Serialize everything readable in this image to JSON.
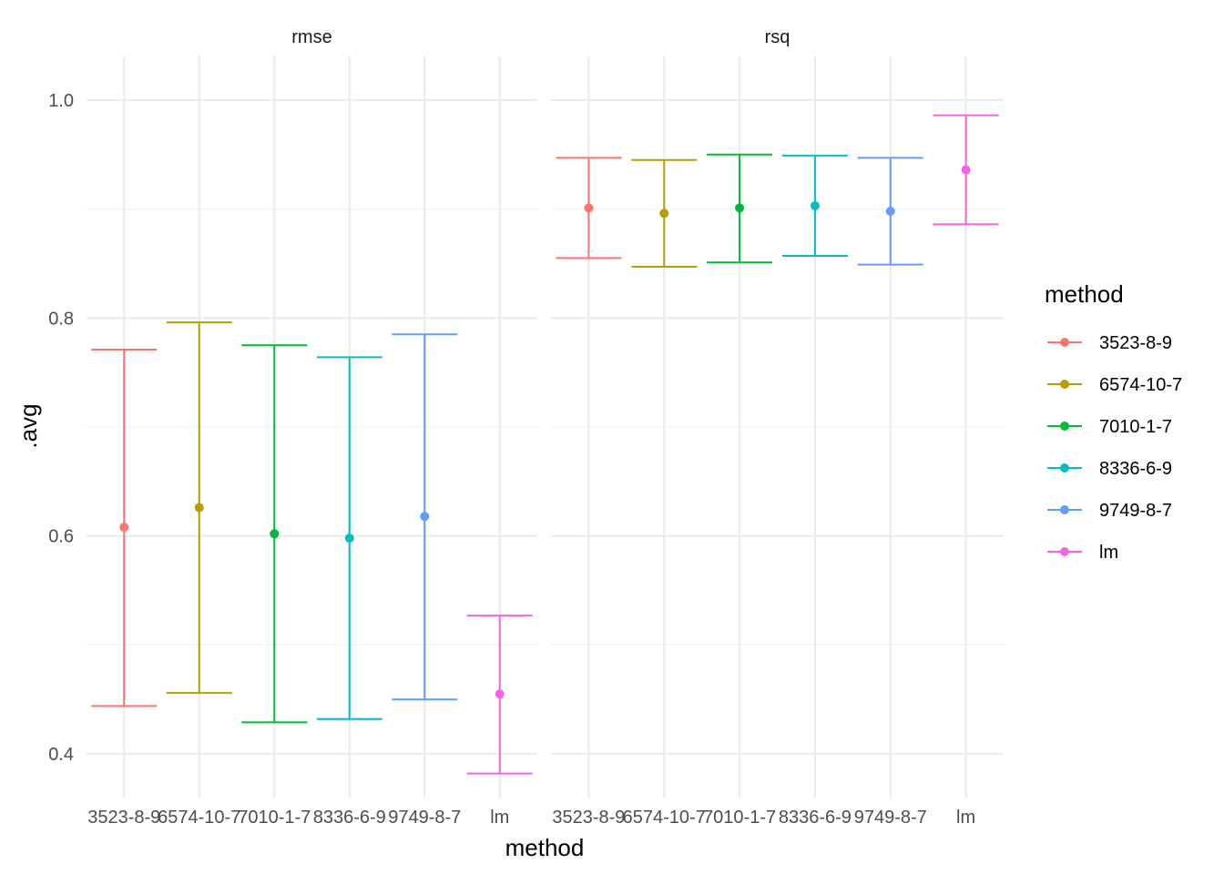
{
  "chart_data": {
    "type": "errorbar",
    "xlabel": "method",
    "ylabel": ".avg",
    "ylim": [
      0.36,
      1.04
    ],
    "y_ticks": [
      "0.4",
      "0.6",
      "0.8",
      "1.0"
    ],
    "y_tick_values": [
      0.4,
      0.6,
      0.8,
      1.0
    ],
    "grid": true,
    "legend": {
      "title": "method",
      "position": "right",
      "entries": [
        "3523-8-9",
        "6574-10-7",
        "7010-1-7",
        "8336-6-9",
        "9749-8-7",
        "lm"
      ]
    },
    "colors": {
      "3523-8-9": "#F8766D",
      "6574-10-7": "#B79F00",
      "7010-1-7": "#00BA38",
      "8336-6-9": "#00BFC4",
      "9749-8-7": "#619CFF",
      "lm": "#F564E3"
    },
    "categories": [
      "3523-8-9",
      "6574-10-7",
      "7010-1-7",
      "8336-6-9",
      "9749-8-7",
      "lm"
    ],
    "panels": [
      {
        "strip": "rmse",
        "series": [
          {
            "method": "3523-8-9",
            "mean": 0.608,
            "lower": 0.444,
            "upper": 0.771
          },
          {
            "method": "6574-10-7",
            "mean": 0.626,
            "lower": 0.456,
            "upper": 0.796
          },
          {
            "method": "7010-1-7",
            "mean": 0.602,
            "lower": 0.429,
            "upper": 0.775
          },
          {
            "method": "8336-6-9",
            "mean": 0.598,
            "lower": 0.432,
            "upper": 0.764
          },
          {
            "method": "9749-8-7",
            "mean": 0.618,
            "lower": 0.45,
            "upper": 0.785
          },
          {
            "method": "lm",
            "mean": 0.455,
            "lower": 0.382,
            "upper": 0.527
          }
        ]
      },
      {
        "strip": "rsq",
        "series": [
          {
            "method": "3523-8-9",
            "mean": 0.901,
            "lower": 0.855,
            "upper": 0.947
          },
          {
            "method": "6574-10-7",
            "mean": 0.896,
            "lower": 0.847,
            "upper": 0.945
          },
          {
            "method": "7010-1-7",
            "mean": 0.901,
            "lower": 0.851,
            "upper": 0.95
          },
          {
            "method": "8336-6-9",
            "mean": 0.903,
            "lower": 0.857,
            "upper": 0.949
          },
          {
            "method": "9749-8-7",
            "mean": 0.898,
            "lower": 0.849,
            "upper": 0.947
          },
          {
            "method": "lm",
            "mean": 0.936,
            "lower": 0.886,
            "upper": 0.986
          }
        ]
      }
    ]
  }
}
